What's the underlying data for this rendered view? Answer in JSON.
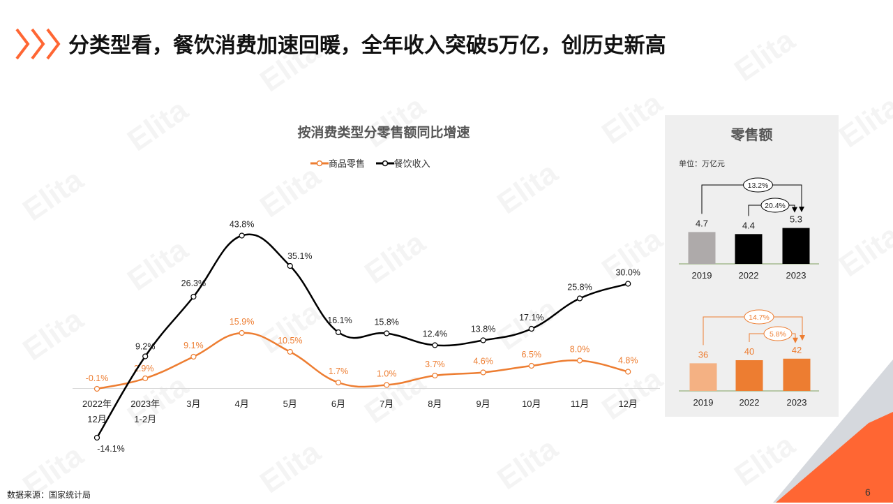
{
  "header": {
    "title": "分类型看，餐饮消费加速回暖，全年收入突破5万亿，创历史新高"
  },
  "watermark_text": "Elita",
  "colors": {
    "accent": "#ED7D31",
    "black": "#000000",
    "gray_bar": "#AEAAAA",
    "light_orange": "#F4B183",
    "panel_bg": "#EFEFEF",
    "deco_orange": "#FF6633",
    "deco_gray": "#D0D3D8"
  },
  "chart_data": [
    {
      "type": "line",
      "title": "按消费类型分零售额同比增速",
      "categories": [
        [
          "2022年",
          "12月"
        ],
        [
          "2023年",
          "1-2月"
        ],
        [
          "3月"
        ],
        [
          "4月"
        ],
        [
          "5月"
        ],
        [
          "6月"
        ],
        [
          "7月"
        ],
        [
          "8月"
        ],
        [
          "9月"
        ],
        [
          "10月"
        ],
        [
          "11月"
        ],
        [
          "12月"
        ]
      ],
      "series": [
        {
          "name": "商品零售",
          "color": "#ED7D31",
          "values": [
            -0.1,
            2.9,
            9.1,
            15.9,
            10.5,
            1.7,
            1.0,
            3.7,
            4.6,
            6.5,
            8.0,
            4.8
          ],
          "labels": [
            "-0.1%",
            "2.9%",
            "9.1%",
            "15.9%",
            "10.5%",
            "1.7%",
            "1.0%",
            "3.7%",
            "4.6%",
            "6.5%",
            "8.0%",
            "4.8%"
          ]
        },
        {
          "name": "餐饮收入",
          "color": "#000000",
          "values": [
            -14.1,
            9.2,
            26.3,
            43.8,
            35.1,
            16.1,
            15.8,
            12.4,
            13.8,
            17.1,
            25.8,
            30.0
          ],
          "labels": [
            "-14.1%",
            "9.2%",
            "26.3%",
            "43.8%",
            "35.1%",
            "16.1%",
            "15.8%",
            "12.4%",
            "13.8%",
            "17.1%",
            "25.8%",
            "30.0%"
          ]
        }
      ],
      "ylim": [
        -16,
        46
      ],
      "grid": false,
      "legend": "top"
    },
    {
      "type": "bar",
      "title": "零售额",
      "unit": "单位：万亿元",
      "categories": [
        "2019",
        "2022",
        "2023"
      ],
      "values": [
        4.7,
        4.4,
        5.3
      ],
      "labels": [
        "4.7",
        "4.4",
        "5.3"
      ],
      "colors": [
        "#AEAAAA",
        "#000000",
        "#000000"
      ],
      "annotations": [
        {
          "text": "13.2%",
          "from": "2019",
          "to": "2023"
        },
        {
          "text": "20.4%",
          "from": "2022",
          "to": "2023"
        }
      ]
    },
    {
      "type": "bar",
      "categories": [
        "2019",
        "2022",
        "2023"
      ],
      "values": [
        36,
        40,
        42
      ],
      "labels": [
        "36",
        "40",
        "42"
      ],
      "colors": [
        "#F4B183",
        "#ED7D31",
        "#ED7D31"
      ],
      "annotations": [
        {
          "text": "14.7%",
          "from": "2019",
          "to": "2023"
        },
        {
          "text": "5.8%",
          "from": "2022",
          "to": "2023"
        }
      ]
    }
  ],
  "footer": {
    "source": "数据来源：国家统计局",
    "page": "6"
  }
}
